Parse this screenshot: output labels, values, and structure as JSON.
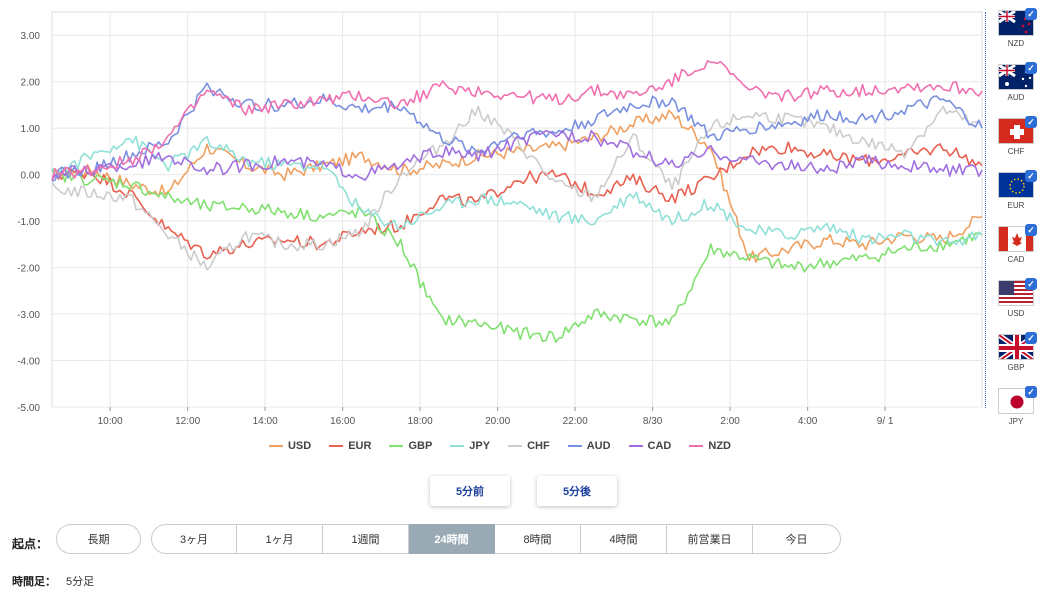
{
  "chart_data": {
    "type": "line",
    "ylim": [
      -5,
      3.5
    ],
    "y_ticks": [
      "3.00",
      "2.00",
      "1.00",
      "0.00",
      "-1.00",
      "-2.00",
      "-3.00",
      "-4.00",
      "-5.00"
    ],
    "x_ticks": [
      "10:00",
      "12:00",
      "14:00",
      "16:00",
      "18:00",
      "20:00",
      "22:00",
      "8/30",
      "2:00",
      "4:00",
      "9/ 1"
    ],
    "x_hours": [
      0,
      1,
      2,
      3,
      4,
      5,
      6,
      7,
      8,
      9,
      10,
      11,
      12,
      13,
      14,
      15,
      16,
      17,
      18,
      19,
      20,
      21,
      22,
      23,
      24
    ],
    "series": [
      {
        "name": "USD",
        "color": "#f0a060",
        "values": [
          0,
          0.1,
          -0.2,
          -0.4,
          0.6,
          0.2,
          0,
          0.2,
          0.4,
          0.1,
          0.2,
          0.4,
          0.5,
          0.6,
          0.8,
          1.1,
          1.3,
          0.6,
          -1.8,
          -1.6,
          -1.4,
          -1.5,
          -1.3,
          -1.4,
          -0.9
        ]
      },
      {
        "name": "EUR",
        "color": "#e86050",
        "values": [
          0,
          0.05,
          -0.4,
          -1.2,
          -1.7,
          -1.5,
          -1.4,
          -1.5,
          -1.2,
          -1.1,
          -0.5,
          -0.6,
          -0.1,
          0,
          -0.4,
          -0.1,
          -0.5,
          -0.1,
          0.5,
          0.6,
          0.4,
          0.3,
          0.4,
          0.6,
          0.2
        ]
      },
      {
        "name": "GBP",
        "color": "#80e070",
        "values": [
          0,
          -0.1,
          -0.2,
          -0.5,
          -0.7,
          -0.7,
          -0.8,
          -0.9,
          -0.8,
          -1.5,
          -3.1,
          -3.2,
          -3.4,
          -3.5,
          -3.0,
          -3.1,
          -3.2,
          -1.6,
          -1.8,
          -2.0,
          -1.9,
          -1.8,
          -1.6,
          -1.5,
          -1.3
        ]
      },
      {
        "name": "JPY",
        "color": "#90e0d8",
        "values": [
          0,
          0.4,
          0.8,
          0.2,
          0.7,
          0.3,
          0.2,
          0.2,
          -0.8,
          -1.1,
          -0.7,
          -0.5,
          -0.6,
          -0.9,
          -1.0,
          -0.4,
          -1.0,
          -0.6,
          -1.2,
          -1.3,
          -1.1,
          -1.4,
          -1.3,
          -1.5,
          -1.3
        ]
      },
      {
        "name": "CHF",
        "color": "#cccccc",
        "values": [
          -0.3,
          -0.4,
          -0.5,
          -1.3,
          -2.0,
          -1.3,
          -1.5,
          -1.5,
          -1.2,
          0,
          0.6,
          1.4,
          0.7,
          -0.2,
          -0.5,
          0.8,
          -0.3,
          1.0,
          1.3,
          1.2,
          1.0,
          0.7,
          0.5,
          1.4,
          1.0
        ]
      },
      {
        "name": "AUD",
        "color": "#7a90e0",
        "values": [
          0,
          0.1,
          0.4,
          0.7,
          1.9,
          1.5,
          1.5,
          1.6,
          1.4,
          1.5,
          0.8,
          0.5,
          0.9,
          0.9,
          1.2,
          1.5,
          1.6,
          0.8,
          1.0,
          1.1,
          1.3,
          1.2,
          1.4,
          1.6,
          1.0
        ]
      },
      {
        "name": "CAD",
        "color": "#a070e0",
        "values": [
          0,
          0.1,
          0.2,
          0.4,
          0.1,
          0.2,
          0.3,
          0.2,
          0,
          0.2,
          0.5,
          0.4,
          0.7,
          0.9,
          0.8,
          0.5,
          0.2,
          0.5,
          0.3,
          0.2,
          0.1,
          0.3,
          0.2,
          0.1,
          0.1
        ]
      },
      {
        "name": "NZD",
        "color": "#f070b0",
        "values": [
          0,
          0.1,
          0.3,
          0.8,
          1.8,
          1.4,
          1.5,
          1.6,
          1.7,
          1.5,
          1.9,
          1.8,
          1.7,
          1.6,
          1.8,
          1.7,
          2.0,
          2.5,
          1.8,
          1.7,
          1.8,
          1.8,
          1.9,
          1.9,
          1.8
        ]
      }
    ]
  },
  "flags": [
    {
      "code": "NZD"
    },
    {
      "code": "AUD"
    },
    {
      "code": "CHF"
    },
    {
      "code": "EUR"
    },
    {
      "code": "CAD"
    },
    {
      "code": "USD"
    },
    {
      "code": "GBP"
    },
    {
      "code": "JPY"
    }
  ],
  "nav": {
    "prev_label": "5分前",
    "next_label": "5分後"
  },
  "start_label": "起点：",
  "ranges": [
    "長期",
    "3ヶ月",
    "1ヶ月",
    "1週間",
    "24時間",
    "8時間",
    "4時間",
    "前営業日",
    "今日"
  ],
  "active_range": "24時間",
  "timeframe": {
    "label": "時間足：",
    "value": "5分足"
  }
}
